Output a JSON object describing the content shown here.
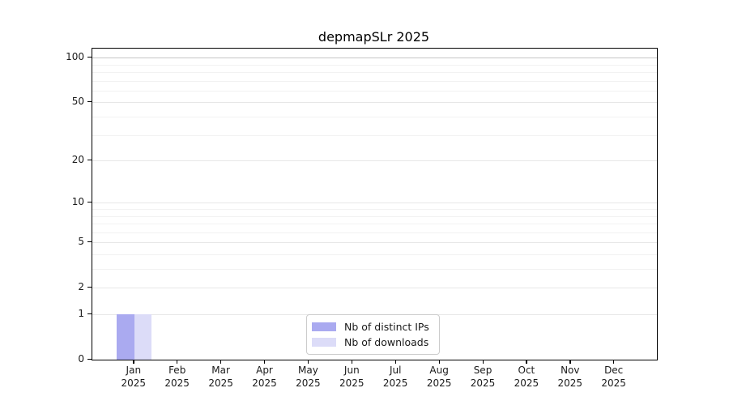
{
  "title": "depmapSLr 2025",
  "chart_data": {
    "type": "bar",
    "title": "depmapSLr 2025",
    "categories": [
      "Jan 2025",
      "Feb 2025",
      "Mar 2025",
      "Apr 2025",
      "May 2025",
      "Jun 2025",
      "Jul 2025",
      "Aug 2025",
      "Sep 2025",
      "Oct 2025",
      "Nov 2025",
      "Dec 2025"
    ],
    "series": [
      {
        "name": "Nb of distinct IPs",
        "color": "#aaaaf0",
        "values": [
          1,
          0,
          0,
          0,
          0,
          0,
          0,
          0,
          0,
          0,
          0,
          0
        ]
      },
      {
        "name": "Nb of downloads",
        "color": "#dcdcf8",
        "values": [
          1,
          0,
          0,
          0,
          0,
          0,
          0,
          0,
          0,
          0,
          0,
          0
        ]
      }
    ],
    "xlabel": "",
    "ylabel": "",
    "yscale": "log1p",
    "ylim": [
      0,
      115
    ],
    "yticks": [
      0,
      1,
      2,
      5,
      10,
      20,
      50,
      100
    ],
    "major_gridlines": [
      1,
      2,
      5,
      10,
      20,
      50
    ],
    "top_gridline": 100,
    "minor_gridlines": [
      3,
      4,
      6,
      7,
      8,
      9,
      30,
      40,
      60,
      70,
      80,
      90
    ],
    "grid": true,
    "legend_position": "lower center"
  },
  "legend": {
    "items": [
      {
        "label": "Nb of distinct IPs",
        "color": "#aaaaf0"
      },
      {
        "label": "Nb of downloads",
        "color": "#dcdcf8"
      }
    ]
  }
}
